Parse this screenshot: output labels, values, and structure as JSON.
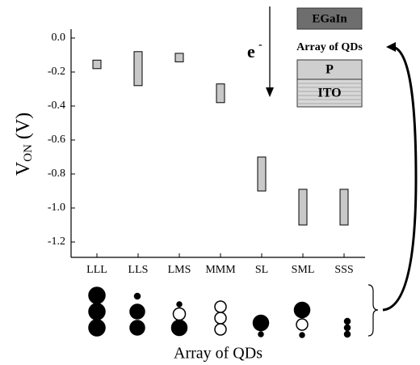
{
  "chart_data": {
    "type": "floating-bar",
    "ylabel_main": "V",
    "ylabel_sub": "ON",
    "ylabel_unit": "(V)",
    "xlabel": "Array of QDs",
    "categories": [
      "LLL",
      "LLS",
      "LMS",
      "MMM",
      "SL",
      "SML",
      "SSS"
    ],
    "low": [
      -0.18,
      -0.28,
      -0.14,
      -0.38,
      -0.9,
      -1.1,
      -1.1
    ],
    "high": [
      -0.13,
      -0.08,
      -0.09,
      -0.27,
      -0.7,
      -0.89,
      -0.89
    ],
    "color": "#c8c8c8",
    "ylim": [
      -1.3,
      0.05
    ],
    "yticks": [
      {
        "value": 0,
        "label": "0.0"
      },
      -0.2,
      -0.4,
      -0.6,
      -0.8,
      {
        "value": -1,
        "label": "-1.0"
      },
      -1.2
    ],
    "inset": {
      "top": "EGaIn",
      "middle": "Array of QDs",
      "layer": "P",
      "bottom": "ITO",
      "carrier": "e",
      "carrier_sup": "-"
    }
  }
}
